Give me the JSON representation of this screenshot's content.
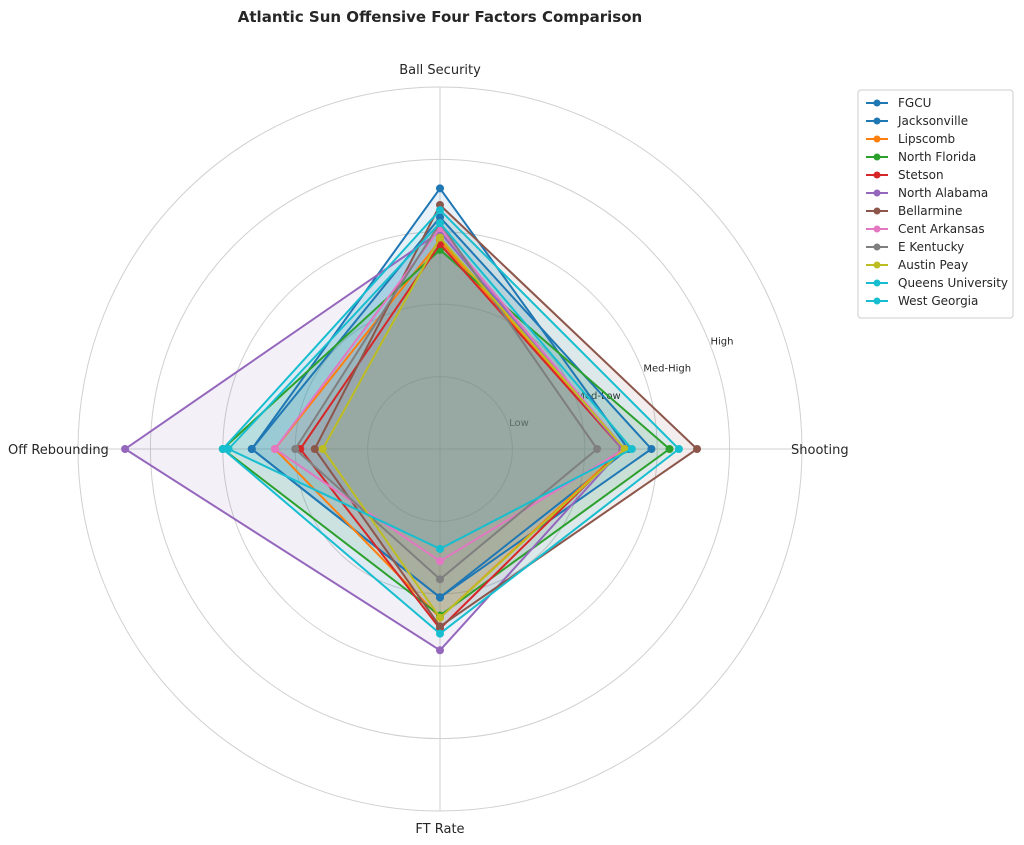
{
  "chart_data": {
    "type": "radar",
    "title": "Atlantic Sun Offensive Four Factors Comparison",
    "axes": [
      "Ball Security",
      "Shooting",
      "FT Rate",
      "Off Rebounding"
    ],
    "ring_labels": [
      "Low",
      "Med-Low",
      "Med-High",
      "High"
    ],
    "range": [
      0,
      5
    ],
    "grid": true,
    "legend_position": "top-right",
    "series": [
      {
        "name": "FGCU",
        "color": "#1f77b4",
        "values": [
          3.6,
          2.6,
          2.05,
          2.6
        ]
      },
      {
        "name": "Jacksonville",
        "color": "#1f77b4",
        "values": [
          3.2,
          2.92,
          2.05,
          2.6
        ]
      },
      {
        "name": "Lipscomb",
        "color": "#ff7f0e",
        "values": [
          2.88,
          2.52,
          2.33,
          2.28
        ]
      },
      {
        "name": "North Florida",
        "color": "#2ca02c",
        "values": [
          2.75,
          3.17,
          2.3,
          3.0
        ]
      },
      {
        "name": "Stetson",
        "color": "#d62728",
        "values": [
          2.83,
          2.52,
          2.48,
          1.93
        ]
      },
      {
        "name": "North Alabama",
        "color": "#9467bd",
        "values": [
          3.0,
          2.52,
          2.78,
          4.35
        ]
      },
      {
        "name": "Bellarmine",
        "color": "#8c564b",
        "values": [
          3.37,
          3.55,
          2.45,
          1.73
        ]
      },
      {
        "name": "Cent Arkansas",
        "color": "#e377c2",
        "values": [
          3.05,
          2.55,
          1.55,
          2.28
        ]
      },
      {
        "name": "E Kentucky",
        "color": "#7f7f7f",
        "values": [
          3.12,
          2.17,
          1.8,
          2.0
        ]
      },
      {
        "name": "Austin Peay",
        "color": "#bcbd22",
        "values": [
          2.92,
          2.55,
          2.33,
          1.62
        ]
      },
      {
        "name": "Queens University",
        "color": "#17becf",
        "values": [
          3.3,
          3.3,
          2.55,
          3.0
        ]
      },
      {
        "name": "West Georgia",
        "color": "#17becf",
        "values": [
          3.12,
          2.65,
          1.38,
          2.92
        ]
      }
    ]
  }
}
